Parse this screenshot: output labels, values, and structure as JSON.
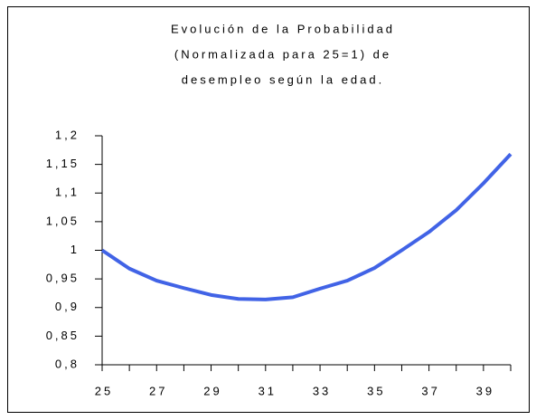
{
  "chart_data": {
    "type": "line",
    "title": [
      "Evolución de la Probabilidad",
      "(Normalizada para 25=1) de",
      "desempleo según la edad."
    ],
    "x": [
      25,
      26,
      27,
      28,
      29,
      30,
      31,
      32,
      33,
      34,
      35,
      36,
      37,
      38,
      39,
      40
    ],
    "series": [
      {
        "color": "#4163e6",
        "values": [
          1.0,
          0.968,
          0.947,
          0.934,
          0.922,
          0.915,
          0.914,
          0.918,
          0.933,
          0.947,
          0.969,
          1.0,
          1.032,
          1.07,
          1.117,
          1.168
        ]
      }
    ],
    "xlim": [
      25,
      40
    ],
    "xticks": [
      25,
      27,
      29,
      31,
      33,
      35,
      37,
      39
    ],
    "xminor_ticks": [
      26,
      28,
      30,
      32,
      34,
      36,
      38,
      40
    ],
    "ylim": [
      0.8,
      1.2
    ],
    "yticks": [
      {
        "value": 0.8,
        "label": "0,8"
      },
      {
        "value": 0.85,
        "label": "0,85"
      },
      {
        "value": 0.9,
        "label": "0,9"
      },
      {
        "value": 0.95,
        "label": "0,95"
      },
      {
        "value": 1,
        "label": "1"
      },
      {
        "value": 1.05,
        "label": "1,05"
      },
      {
        "value": 1.1,
        "label": "1,1"
      },
      {
        "value": 1.15,
        "label": "1,15"
      },
      {
        "value": 1.2,
        "label": "1,2"
      }
    ],
    "grid": false
  }
}
